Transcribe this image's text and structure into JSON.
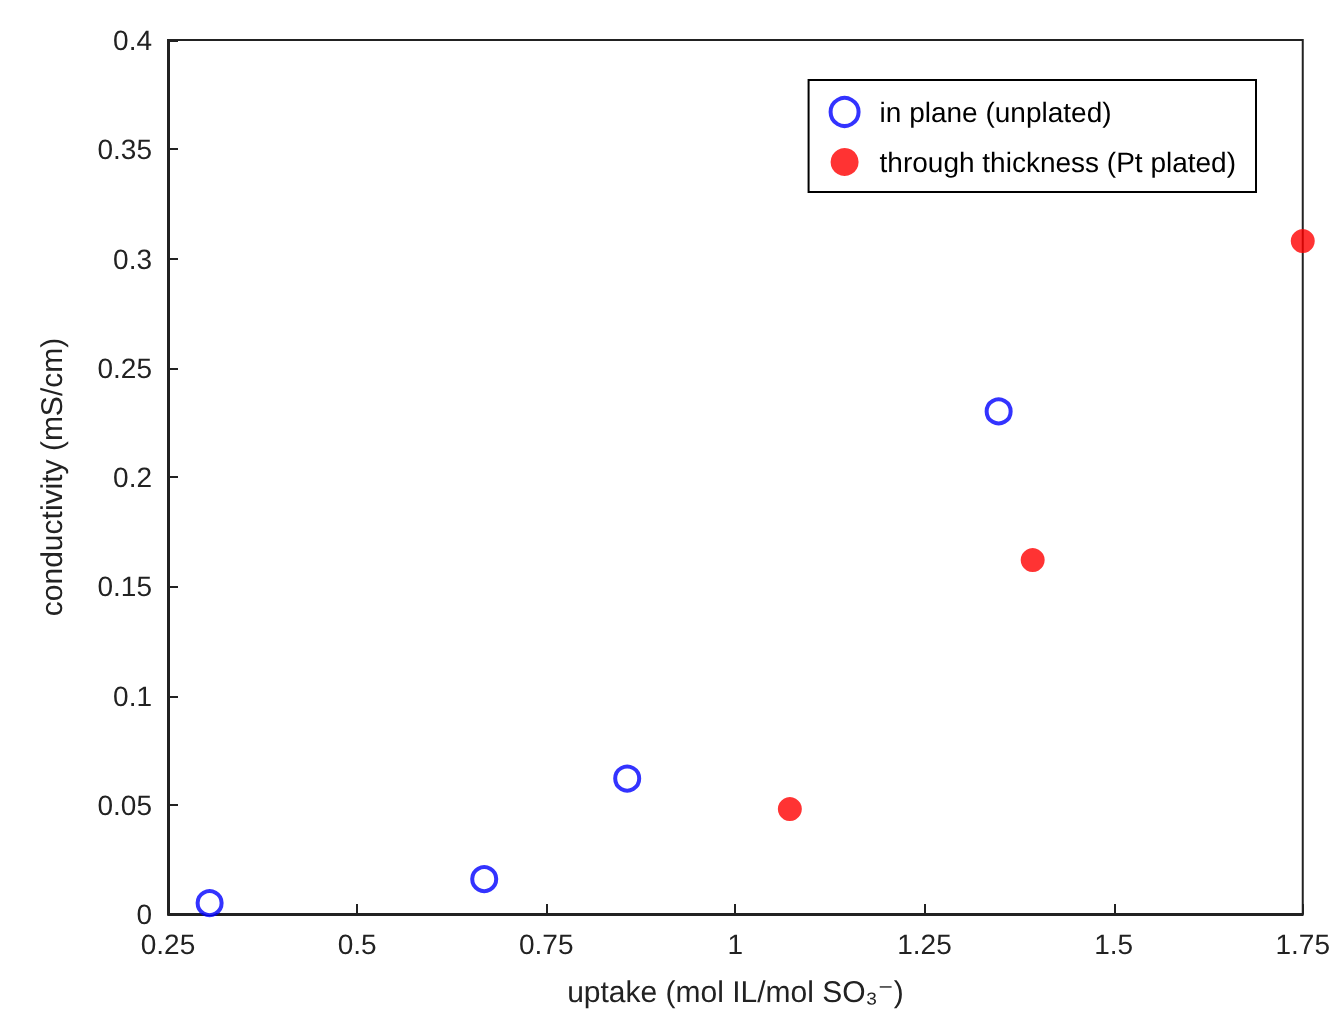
{
  "chart_data": {
    "type": "scatter",
    "xlabel": "uptake (mol IL/mol SO₃⁻)",
    "ylabel": "conductivity (mS/cm)",
    "xlim": [
      0.25,
      1.75
    ],
    "xticks": [
      0.25,
      0.5,
      0.75,
      1,
      1.25,
      1.5,
      1.75
    ],
    "ylim": [
      0,
      0.4
    ],
    "yticks": [
      0,
      0.05,
      0.1,
      0.15,
      0.2,
      0.25,
      0.3,
      0.35,
      0.4
    ],
    "grid": false,
    "legend": "top right",
    "marker": "circle",
    "series": [
      {
        "name": "in plane (unplated)",
        "color": "#0000ff",
        "x": [
          0.305,
          0.668,
          0.857,
          1.348
        ],
        "values": [
          0.005,
          0.016,
          0.062,
          0.23
        ]
      },
      {
        "name": "through thickness (Pt plated)",
        "color": "#ff0000",
        "x": [
          1.072,
          1.393,
          1.75
        ],
        "values": [
          0.048,
          0.162,
          0.308
        ]
      }
    ]
  }
}
